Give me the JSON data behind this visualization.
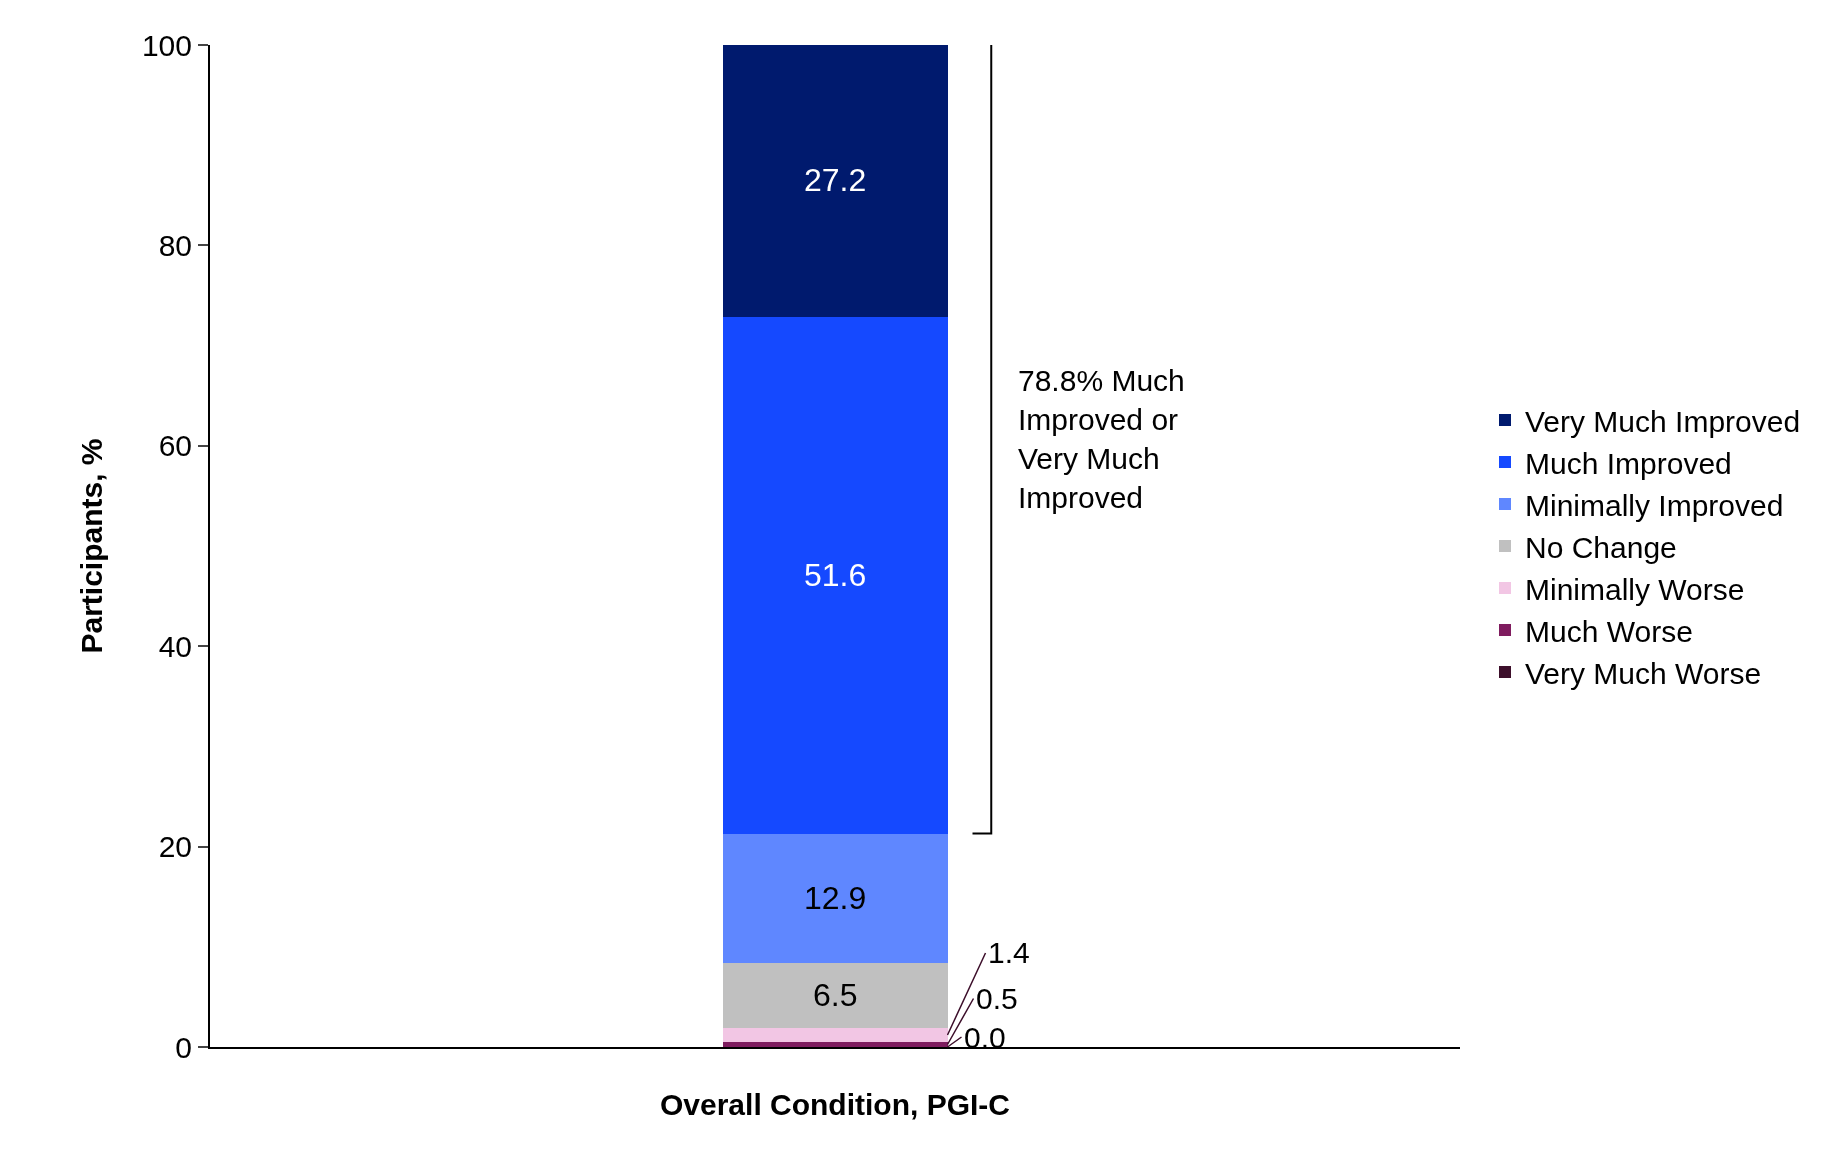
{
  "chart_data": {
    "type": "bar",
    "stacked": true,
    "categories": [
      null
    ],
    "xlabel": "Overall Condition, PGI-C",
    "ylabel": "Participants, %",
    "ylim": [
      0,
      100
    ],
    "yticks": [
      0,
      20,
      40,
      60,
      80,
      100
    ],
    "grid": false,
    "legend": "right",
    "series": [
      {
        "name": "Very Much Worse",
        "color": "#3d0f2b",
        "values": [
          0.0
        ],
        "value_labels": [
          null
        ]
      },
      {
        "name": "Much Worse",
        "color": "#7f1c5f",
        "values": [
          0.5
        ],
        "value_labels": [
          "0.5"
        ]
      },
      {
        "name": "Minimally Worse",
        "color": "#f2c6e4",
        "values": [
          1.4
        ],
        "value_labels": [
          "1.4"
        ]
      },
      {
        "name": "No Change",
        "color": "#c0c0c0",
        "values": [
          6.5
        ],
        "value_labels": [
          "6.5"
        ]
      },
      {
        "name": "Minimally Improved",
        "color": "#5f87ff",
        "values": [
          12.9
        ],
        "value_labels": [
          "12.9"
        ]
      },
      {
        "name": "Much Improved",
        "color": "#1549ff",
        "values": [
          51.6
        ],
        "value_labels": [
          "51.6"
        ]
      },
      {
        "name": "Very Much Improved",
        "color": "#001a6e",
        "values": [
          27.2
        ],
        "value_labels": [
          "27.2"
        ]
      }
    ],
    "annotations": [
      "78.8% Much Improved or Very Much Improved",
      "0.0"
    ]
  }
}
